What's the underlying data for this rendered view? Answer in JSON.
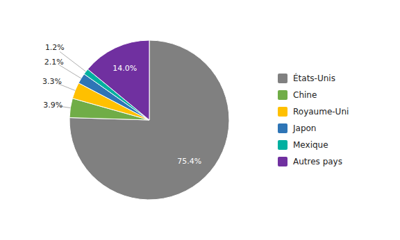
{
  "chart_data": {
    "type": "pie",
    "categories": [
      "États-Unis",
      "Chine",
      "Royaume-Uni",
      "Japon",
      "Mexique",
      "Autres pays"
    ],
    "values": [
      75.4,
      3.9,
      3.3,
      2.1,
      1.2,
      14.0
    ],
    "value_labels": [
      "75.4%",
      "3.9%",
      "3.3%",
      "2.1%",
      "1.2%",
      "14.0%"
    ],
    "colors": [
      "#808080",
      "#70ad47",
      "#ffc000",
      "#2e75b6",
      "#00b0a0",
      "#7030a0"
    ],
    "data_labels": true,
    "legend": "right"
  }
}
